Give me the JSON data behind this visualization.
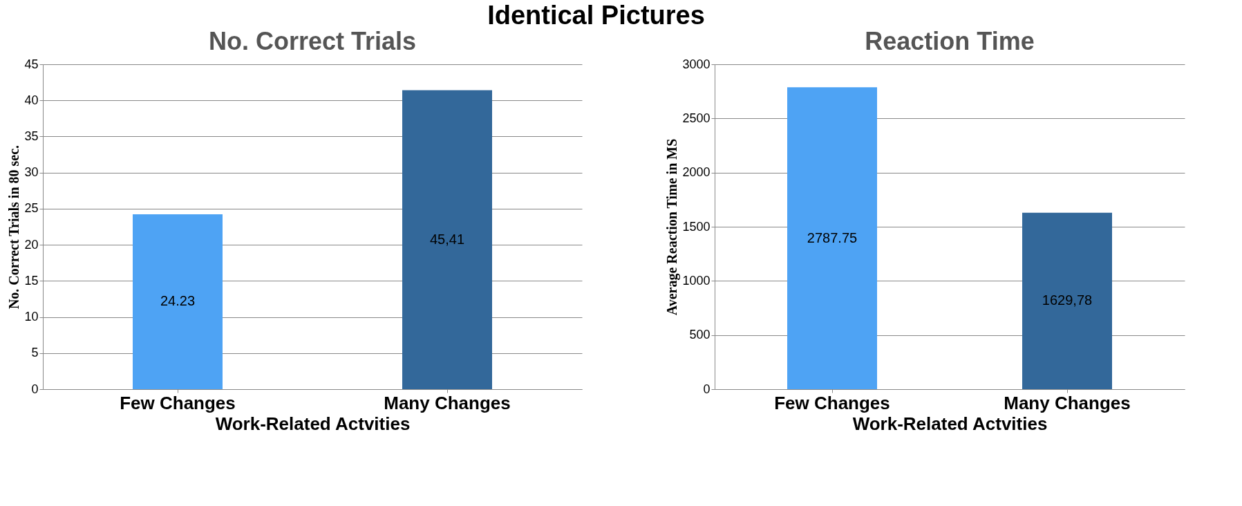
{
  "chart_data": [
    {
      "type": "bar",
      "title": "No. Correct Trials",
      "annotations": [
        "Identical Pictures",
        "45,41"
      ],
      "categories": [
        "Few Changes",
        "Many Changes"
      ],
      "values": [
        24.23,
        41.4
      ],
      "value_labels": [
        "24.23",
        null
      ],
      "colors": [
        "#4ea3f4",
        "#33689a"
      ],
      "xlabel": "Work-Related Actvities",
      "ylabel": "No. Correct Trials in 80 sec.",
      "ylim": [
        0,
        45
      ],
      "yticks": [
        0,
        5,
        10,
        15,
        20,
        25,
        30,
        35,
        40,
        45
      ],
      "grid": "y"
    },
    {
      "type": "bar",
      "title": "Reaction Time",
      "categories": [
        "Few Changes",
        "Many Changes"
      ],
      "values": [
        2787.75,
        1629.78
      ],
      "value_labels": [
        "2787.75",
        "1629,78"
      ],
      "colors": [
        "#4ea3f4",
        "#33689a"
      ],
      "xlabel": "Work-Related Actvities",
      "ylabel": "Average Reaction Time  in MS",
      "ylim": [
        0,
        3000
      ],
      "yticks": [
        0,
        500,
        1000,
        1500,
        2000,
        2500,
        3000
      ],
      "grid": "y"
    }
  ]
}
